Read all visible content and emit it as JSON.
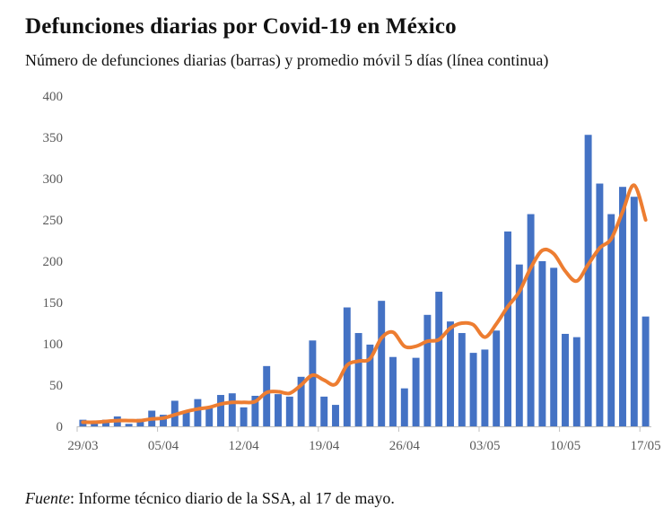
{
  "title": "Defunciones diarias por Covid-19 en México",
  "subtitle": "Número de defunciones diarias (barras) y promedio móvil 5 días (línea continua)",
  "source": {
    "label": "Fuente",
    "text": ": Informe técnico diario de la SSA, al 17 de mayo."
  },
  "colors": {
    "bars": "#4472C4",
    "line": "#ED7D31",
    "axis": "#BFBFBF",
    "tick_text": "#595959"
  },
  "chart_data": {
    "type": "bar",
    "title": "Defunciones diarias por Covid-19 en México",
    "xlabel": "",
    "ylabel": "",
    "ylim": [
      0,
      400
    ],
    "yticks": [
      0,
      50,
      100,
      150,
      200,
      250,
      300,
      350,
      400
    ],
    "grid": false,
    "xtick_labels": [
      "29/03",
      "05/04",
      "12/04",
      "19/04",
      "26/04",
      "03/05",
      "10/05",
      "17/05"
    ],
    "xtick_every": 7,
    "categories": [
      "29/03",
      "30/03",
      "31/03",
      "01/04",
      "02/04",
      "03/04",
      "04/04",
      "05/04",
      "06/04",
      "07/04",
      "08/04",
      "09/04",
      "10/04",
      "11/04",
      "12/04",
      "13/04",
      "14/04",
      "15/04",
      "16/04",
      "17/04",
      "18/04",
      "19/04",
      "20/04",
      "21/04",
      "22/04",
      "23/04",
      "24/04",
      "25/04",
      "26/04",
      "27/04",
      "28/04",
      "29/04",
      "30/04",
      "01/05",
      "02/05",
      "03/05",
      "04/05",
      "05/05",
      "06/05",
      "07/05",
      "08/05",
      "09/05",
      "10/05",
      "11/05",
      "12/05",
      "13/05",
      "14/05",
      "15/05",
      "16/05",
      "17/05"
    ],
    "series": [
      {
        "name": "Defunciones diarias",
        "type": "bar",
        "values": [
          8,
          4,
          8,
          12,
          3,
          9,
          19,
          14,
          31,
          19,
          33,
          22,
          38,
          40,
          23,
          37,
          73,
          39,
          36,
          60,
          104,
          36,
          26,
          144,
          113,
          99,
          152,
          84,
          46,
          83,
          135,
          163,
          127,
          113,
          89,
          93,
          116,
          236,
          196,
          257,
          200,
          192,
          112,
          108,
          353,
          294,
          257,
          290,
          278,
          133
        ]
      },
      {
        "name": "Promedio móvil 5 días",
        "type": "line",
        "values": [
          5,
          5,
          6,
          7,
          7,
          7,
          9,
          10,
          14,
          18,
          21,
          23,
          27,
          29,
          29,
          30,
          41,
          42,
          40,
          50,
          62,
          56,
          51,
          74,
          79,
          82,
          107,
          114,
          97,
          97,
          103,
          105,
          119,
          125,
          123,
          108,
          124,
          145,
          163,
          192,
          213,
          209,
          188,
          176,
          196,
          216,
          227,
          260,
          292,
          250
        ]
      }
    ]
  }
}
